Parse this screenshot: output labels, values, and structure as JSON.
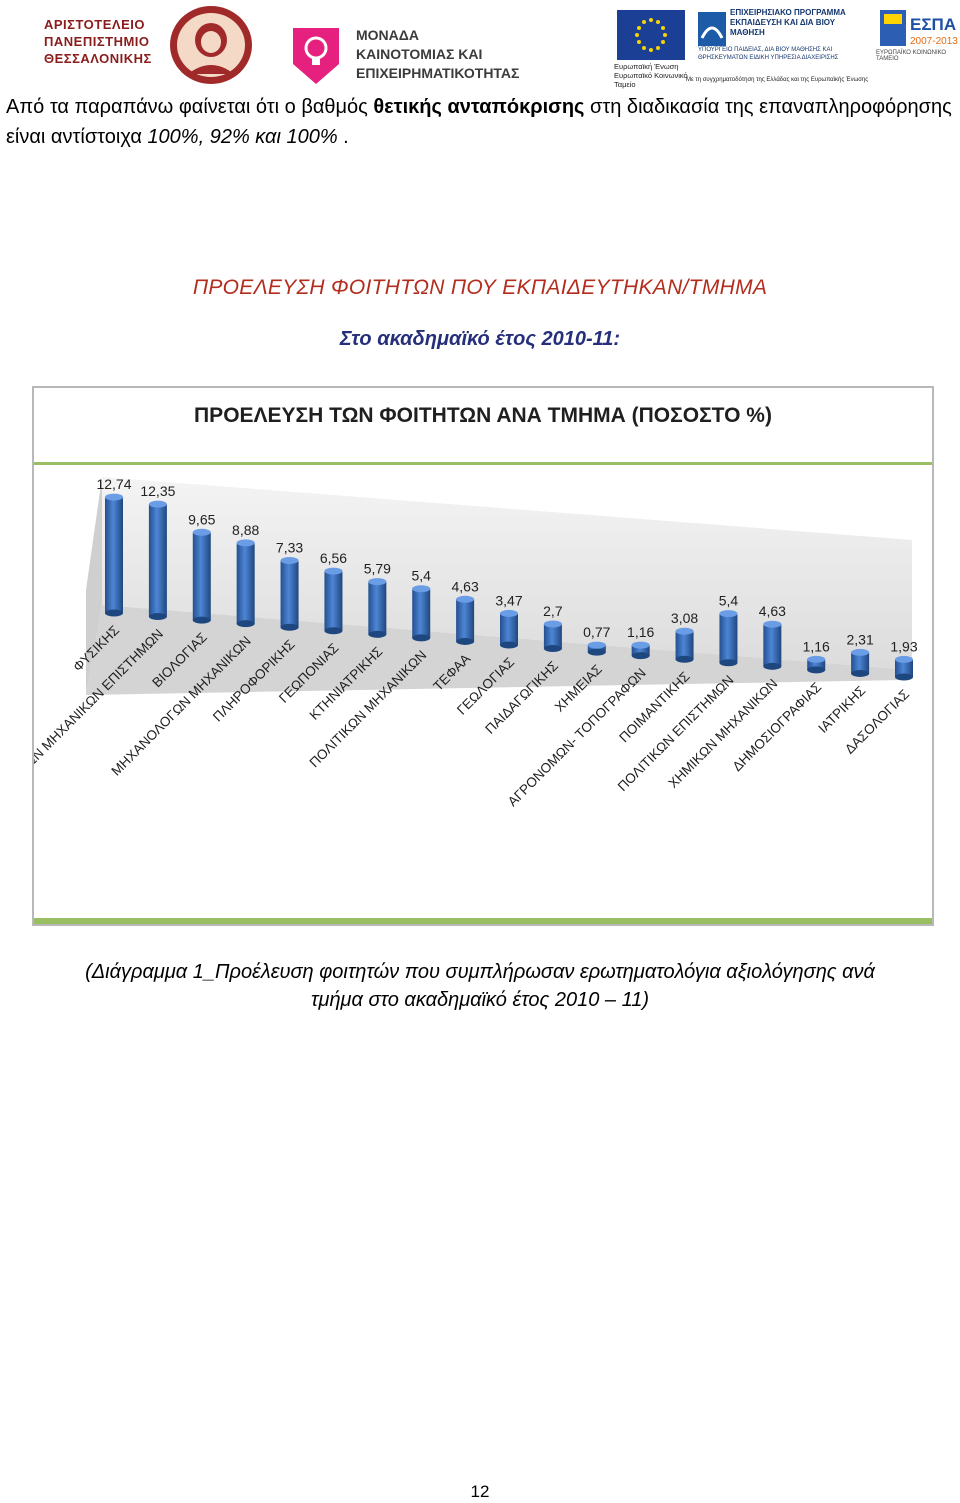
{
  "header": {
    "auth_lines": [
      "ΑΡΙΣΤΟΤΕΛΕΙΟ",
      "ΠΑΝΕΠΙΣΤΗΜΙΟ",
      "ΘΕΣΣΑΛΟΝΙΚΗΣ"
    ],
    "unit_lines": [
      "ΜΟΝΑΔΑ",
      "ΚΑΙΝΟΤΟΜΙΑΣ ΚΑΙ",
      "ΕΠΙΧΕΙΡΗΜΑΤΙΚΟΤΗΤΑΣ"
    ],
    "eu_caption": "Ευρωπαϊκή Ένωση Ευρωπαϊκό Κοινωνικό Ταμείο",
    "program_title": "ΕΠΙΧΕΙΡΗΣΙΑΚΟ ΠΡΟΓΡΑΜΜΑ ΕΚΠΑΙΔΕΥΣΗ ΚΑΙ ΔΙΑ ΒΙΟΥ ΜΑΘΗΣΗ",
    "program_sub": "ΥΠΟΥΡΓΕΙΟ ΠΑΙΔΕΙΑΣ, ΔΙΑ ΒΙΟΥ ΜΑΘΗΣΗΣ ΚΑΙ ΘΡΗΣΚΕΥΜΑΤΩΝ ΕΙΔΙΚΗ ΥΠΗΡΕΣΙΑ ΔΙΑΧΕΙΡΙΣΗΣ",
    "program_foot": "Με τη συγχρηματοδότηση της Ελλάδας και της Ευρωπαϊκής Ένωσης",
    "espa_title": "ΕΣΠΑ",
    "espa_years": "2007-2013",
    "espa_caption": "ΕΥΡΩΠΑΪΚΟ ΚΟΙΝΩΝΙΚΟ ΤΑΜΕΙΟ"
  },
  "intro": {
    "t1": "Από τα παραπάνω φαίνεται ότι ο βαθμός ",
    "bold": "θετικής ανταπόκρισης",
    "t2": " στη διαδικασία της επαναπληροφόρησης είναι αντίστοιχα ",
    "ital": "100%, 92% και 100%",
    "t3": " ."
  },
  "section_title": "ΠΡΟΕΛΕΥΣΗ ΦΟΙΤΗΤΩΝ ΠΟΥ ΕΚΠΑΙΔΕΥΤΗΚΑΝ/ΤΜΗΜΑ",
  "section_sub": "Στο ακαδημαϊκό έτος 2010-11:",
  "chart_data": {
    "type": "bar",
    "title": "ΠΡΟΕΛΕΥΣΗ ΤΩΝ ΦΟΙΤΗΤΩΝ ΑΝΑ ΤΜΗΜΑ (ΠΟΣΟΣΤΟ %)",
    "categories": [
      "ΦΥΣΙΚΗΣ",
      "ΗΛΕΚΤΡΟΛΟΓΩΝ ΜΗΧΑΝΙΚΩΝ ΕΠΙΣΤΗΜΩΝ",
      "ΒΙΟΛΟΓΙΑΣ",
      "ΜΗΧΑΝΟΛΟΓΩΝ ΜΗΧΑΝΙΚΩΝ",
      "ΠΛΗΡΟΦΟΡΙΚΗΣ",
      "ΓΕΩΠΟΝΙΑΣ",
      "ΚΤΗΝΙΑΤΡΙΚΗΣ",
      "ΠΟΛΙΤΙΚΩΝ ΜΗΧΑΝΙΚΩΝ",
      "ΤΕΦΑΑ",
      "ΓΕΩΛΟΓΙΑΣ",
      "ΠΑΙΔΑΓΩΓΙΚΗΣ",
      "ΧΗΜΕΙΑΣ",
      "ΑΓΡΟΝΟΜΩΝ- ΤΟΠΟΓΡΑΦΩΝ",
      "ΠΟΙΜΑΝΤΙΚΗΣ",
      "ΠΟΛΙΤΙΚΩΝ ΕΠΙΣΤΗΜΩΝ",
      "ΧΗΜΙΚΩΝ ΜΗΧΑΝΙΚΩΝ",
      "ΔΗΜΟΣΙΟΓΡΑΦΙΑΣ",
      "ΙΑΤΡΙΚΗΣ",
      "ΔΑΣΟΛΟΓΙΑΣ"
    ],
    "values": [
      12.74,
      12.35,
      9.65,
      8.88,
      7.33,
      6.56,
      5.79,
      5.4,
      4.63,
      3.47,
      2.7,
      0.77,
      1.16,
      3.08,
      5.4,
      4.63,
      1.16,
      2.31,
      1.93
    ],
    "labels": [
      "12,74",
      "12,35",
      "9,65",
      "8,88",
      "7,33",
      "6,56",
      "5,79",
      "5,4",
      "4,63",
      "3,47",
      "2,7",
      "0,77",
      "1,16",
      "3,08",
      "5,4",
      "4,63",
      "1,16",
      "2,31",
      "1,93"
    ],
    "ylim": [
      0,
      14
    ],
    "grid": false,
    "legend": "none",
    "bar_color": "#3d73c4"
  },
  "caption_line1": "(Διάγραμμα 1_Προέλευση φοιτητών που συμπλήρωσαν ερωτηματολόγια αξιολόγησης ανά",
  "caption_line2": "τμήμα στο ακαδημαϊκό έτος 2010 – 11)",
  "page_number": "12"
}
